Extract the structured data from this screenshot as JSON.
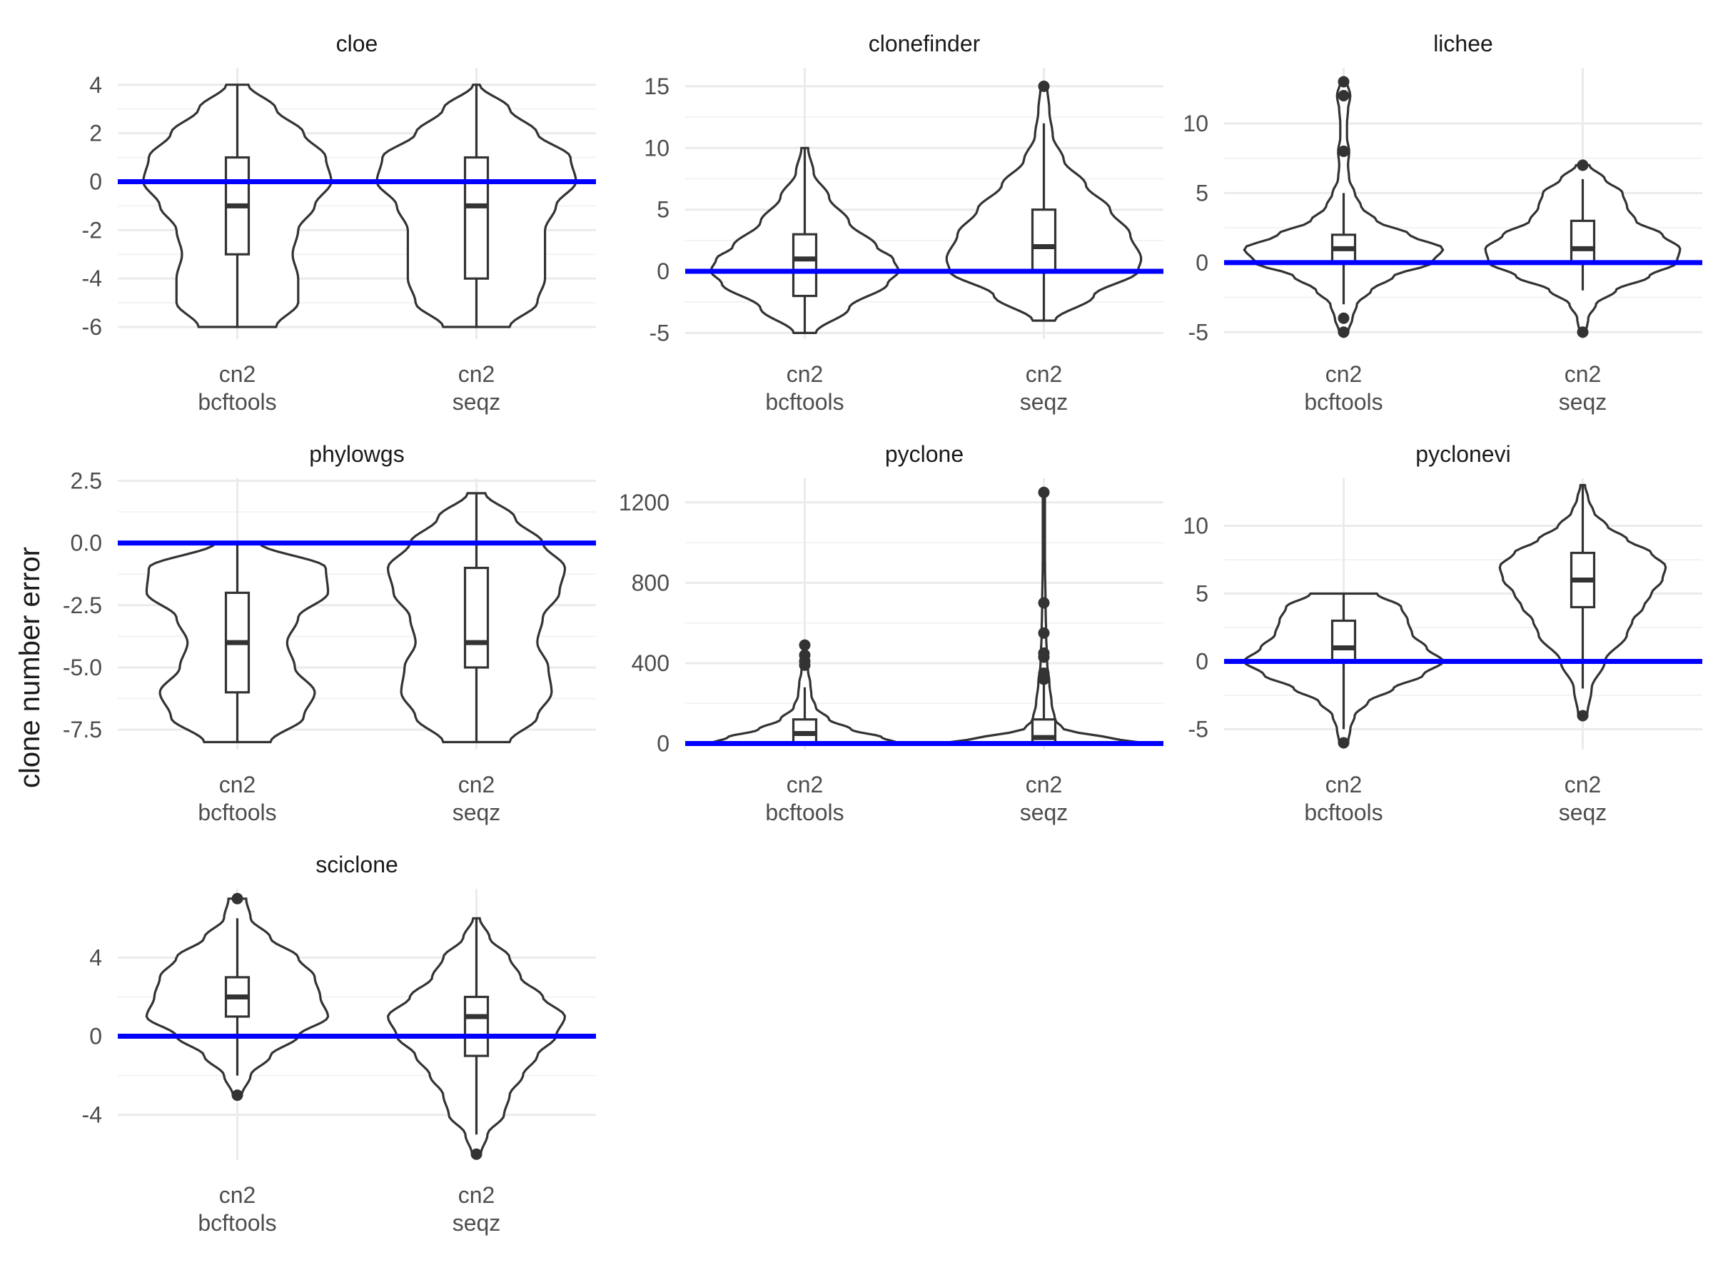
{
  "ylabel": "clone number error",
  "colors": {
    "reference_line": "#0000ff",
    "outline": "#333333",
    "grid_major": "#ebebeb",
    "grid_minor": "#f3f3f3",
    "tick_text": "#4d4d4d",
    "strip_text": "#1a1a1a"
  },
  "chart_data": [
    {
      "type": "violin",
      "title": "cloe",
      "categories": [
        "cn2\nbcftools",
        "cn2\nseqz"
      ],
      "ylim": [
        -6.5,
        4.7
      ],
      "yticks": [
        -6,
        -4,
        -2,
        0,
        2,
        4
      ],
      "ytick_labels": [
        "-6",
        "-4",
        "-2",
        "0",
        "2",
        "4"
      ],
      "reference_line": 0,
      "series": [
        {
          "min": -6,
          "q1": -3,
          "median": -1,
          "q3": 1,
          "max": 4,
          "outliers": [],
          "density": [
            [
              -6,
              0.35
            ],
            [
              -5,
              0.55
            ],
            [
              -4,
              0.55
            ],
            [
              -3,
              0.5
            ],
            [
              -2,
              0.55
            ],
            [
              -1,
              0.7
            ],
            [
              0,
              0.85
            ],
            [
              1,
              0.8
            ],
            [
              2,
              0.6
            ],
            [
              3,
              0.35
            ],
            [
              4,
              0.1
            ]
          ]
        },
        {
          "min": -6,
          "q1": -4,
          "median": -1,
          "q3": 1,
          "max": 4,
          "outliers": [],
          "density": [
            [
              -6,
              0.3
            ],
            [
              -5,
              0.55
            ],
            [
              -4,
              0.62
            ],
            [
              -3,
              0.62
            ],
            [
              -2,
              0.62
            ],
            [
              -1,
              0.72
            ],
            [
              0,
              0.9
            ],
            [
              1,
              0.85
            ],
            [
              2,
              0.55
            ],
            [
              3,
              0.3
            ],
            [
              4,
              0.03
            ]
          ]
        }
      ]
    },
    {
      "type": "violin",
      "title": "clonefinder",
      "categories": [
        "cn2\nbcftools",
        "cn2\nseqz"
      ],
      "ylim": [
        -5.5,
        16.5
      ],
      "yticks": [
        -5,
        0,
        5,
        10,
        15
      ],
      "ytick_labels": [
        "-5",
        "0",
        "5",
        "10",
        "15"
      ],
      "reference_line": 0,
      "series": [
        {
          "min": -5,
          "q1": -2,
          "median": 1,
          "q3": 3,
          "max": 10,
          "outliers": [],
          "density": [
            [
              -5,
              0.1
            ],
            [
              -3,
              0.4
            ],
            [
              -1,
              0.75
            ],
            [
              0,
              0.85
            ],
            [
              1,
              0.8
            ],
            [
              2,
              0.65
            ],
            [
              4,
              0.4
            ],
            [
              6,
              0.22
            ],
            [
              8,
              0.08
            ],
            [
              10,
              0.03
            ]
          ]
        },
        {
          "min": -4,
          "q1": 0,
          "median": 2,
          "q3": 5,
          "max": 12,
          "outliers": [
            15
          ],
          "density": [
            [
              -4,
              0.1
            ],
            [
              -2,
              0.45
            ],
            [
              0,
              0.85
            ],
            [
              1,
              0.88
            ],
            [
              3,
              0.78
            ],
            [
              5,
              0.6
            ],
            [
              7,
              0.38
            ],
            [
              9,
              0.18
            ],
            [
              11,
              0.08
            ],
            [
              13,
              0.05
            ],
            [
              15,
              0.03
            ]
          ]
        }
      ]
    },
    {
      "type": "violin",
      "title": "lichee",
      "categories": [
        "cn2\nbcftools",
        "cn2\nseqz"
      ],
      "ylim": [
        -5.5,
        14
      ],
      "yticks": [
        -5,
        0,
        5,
        10
      ],
      "ytick_labels": [
        "-5",
        "0",
        "5",
        "10"
      ],
      "reference_line": 0,
      "series": [
        {
          "min": -3,
          "q1": 0,
          "median": 1,
          "q3": 2,
          "max": 5,
          "outliers": [
            -5,
            -4,
            8,
            12,
            13
          ],
          "density": [
            [
              -5,
              0.04
            ],
            [
              -4,
              0.08
            ],
            [
              -3,
              0.12
            ],
            [
              -2,
              0.25
            ],
            [
              -1,
              0.45
            ],
            [
              0,
              0.8
            ],
            [
              1,
              0.9
            ],
            [
              2,
              0.6
            ],
            [
              3,
              0.3
            ],
            [
              4,
              0.16
            ],
            [
              5,
              0.1
            ],
            [
              6,
              0.05
            ],
            [
              7,
              0.04
            ],
            [
              8,
              0.05
            ],
            [
              9,
              0.03
            ],
            [
              10,
              0.03
            ],
            [
              11,
              0.04
            ],
            [
              12,
              0.06
            ],
            [
              13,
              0.03
            ]
          ]
        },
        {
          "min": -2,
          "q1": 0,
          "median": 1,
          "q3": 3,
          "max": 6,
          "outliers": [
            -5,
            7
          ],
          "density": [
            [
              -5,
              0.03
            ],
            [
              -4,
              0.05
            ],
            [
              -3,
              0.12
            ],
            [
              -2,
              0.3
            ],
            [
              -1,
              0.6
            ],
            [
              0,
              0.85
            ],
            [
              1,
              0.88
            ],
            [
              2,
              0.72
            ],
            [
              3,
              0.48
            ],
            [
              4,
              0.4
            ],
            [
              5,
              0.36
            ],
            [
              6,
              0.2
            ],
            [
              7,
              0.06
            ]
          ]
        }
      ]
    },
    {
      "type": "violin",
      "title": "phylowgs",
      "categories": [
        "cn2\nbcftools",
        "cn2\nseqz"
      ],
      "ylim": [
        -8.3,
        2.6
      ],
      "yticks": [
        -7.5,
        -5,
        -2.5,
        0,
        2.5
      ],
      "ytick_labels": [
        "-7.5",
        "-5.0",
        "-2.5",
        "0.0",
        "2.5"
      ],
      "reference_line": 0,
      "series": [
        {
          "min": -8,
          "q1": -6,
          "median": -4,
          "q3": -2,
          "max": 0,
          "outliers": [],
          "density": [
            [
              -8,
              0.3
            ],
            [
              -7,
              0.6
            ],
            [
              -6,
              0.7
            ],
            [
              -5,
              0.52
            ],
            [
              -4,
              0.45
            ],
            [
              -3,
              0.55
            ],
            [
              -2,
              0.82
            ],
            [
              -1,
              0.8
            ],
            [
              0,
              0.2
            ]
          ]
        },
        {
          "min": -8,
          "q1": -5,
          "median": -4,
          "q3": -1,
          "max": 2,
          "outliers": [],
          "density": [
            [
              -8,
              0.3
            ],
            [
              -7,
              0.55
            ],
            [
              -6,
              0.68
            ],
            [
              -5,
              0.65
            ],
            [
              -4,
              0.55
            ],
            [
              -3,
              0.6
            ],
            [
              -2,
              0.75
            ],
            [
              -1,
              0.8
            ],
            [
              0,
              0.6
            ],
            [
              1,
              0.35
            ],
            [
              2,
              0.08
            ]
          ]
        }
      ]
    },
    {
      "type": "violin",
      "title": "pyclone",
      "categories": [
        "cn2\nbcftools",
        "cn2\nseqz"
      ],
      "ylim": [
        -30,
        1320
      ],
      "yticks": [
        0,
        400,
        800,
        1200
      ],
      "ytick_labels": [
        "0",
        "400",
        "800",
        "1200"
      ],
      "reference_line": 0,
      "series": [
        {
          "min": 0,
          "q1": 0,
          "median": 50,
          "q3": 120,
          "max": 280,
          "outliers": [
            390,
            410,
            440,
            490
          ],
          "density": [
            [
              0,
              0.85
            ],
            [
              30,
              0.7
            ],
            [
              70,
              0.42
            ],
            [
              120,
              0.22
            ],
            [
              180,
              0.1
            ],
            [
              240,
              0.06
            ],
            [
              300,
              0.05
            ],
            [
              360,
              0.03
            ],
            [
              420,
              0.02
            ],
            [
              490,
              0.01
            ]
          ]
        },
        {
          "min": 0,
          "q1": 0,
          "median": 30,
          "q3": 120,
          "max": 300,
          "outliers": [
            320,
            350,
            430,
            450,
            550,
            700,
            1250
          ],
          "density": [
            [
              0,
              0.95
            ],
            [
              30,
              0.55
            ],
            [
              70,
              0.18
            ],
            [
              120,
              0.1
            ],
            [
              200,
              0.07
            ],
            [
              300,
              0.05
            ],
            [
              400,
              0.03
            ],
            [
              550,
              0.02
            ],
            [
              700,
              0.015
            ],
            [
              900,
              0.01
            ],
            [
              1250,
              0.01
            ]
          ]
        }
      ]
    },
    {
      "type": "violin",
      "title": "pyclonevi",
      "categories": [
        "cn2\nbcftools",
        "cn2\nseqz"
      ],
      "ylim": [
        -6.5,
        13.5
      ],
      "yticks": [
        -5,
        0,
        5,
        10
      ],
      "ytick_labels": [
        "-5",
        "0",
        "5",
        "10"
      ],
      "reference_line": 0,
      "series": [
        {
          "min": -5,
          "q1": 0,
          "median": 1,
          "q3": 3,
          "max": 5,
          "outliers": [
            -6
          ],
          "density": [
            [
              -6,
              0.04
            ],
            [
              -5,
              0.06
            ],
            [
              -4,
              0.1
            ],
            [
              -3,
              0.22
            ],
            [
              -2,
              0.45
            ],
            [
              -1,
              0.72
            ],
            [
              0,
              0.9
            ],
            [
              1,
              0.75
            ],
            [
              2,
              0.62
            ],
            [
              3,
              0.58
            ],
            [
              4,
              0.52
            ],
            [
              5,
              0.3
            ]
          ]
        },
        {
          "min": -2,
          "q1": 4,
          "median": 6,
          "q3": 8,
          "max": 13,
          "outliers": [
            -4
          ],
          "density": [
            [
              -4,
              0.04
            ],
            [
              -2,
              0.08
            ],
            [
              0,
              0.2
            ],
            [
              2,
              0.4
            ],
            [
              3,
              0.45
            ],
            [
              4,
              0.55
            ],
            [
              5,
              0.62
            ],
            [
              6,
              0.72
            ],
            [
              7,
              0.75
            ],
            [
              8,
              0.62
            ],
            [
              9,
              0.4
            ],
            [
              10,
              0.22
            ],
            [
              11,
              0.1
            ],
            [
              12,
              0.05
            ],
            [
              13,
              0.02
            ]
          ]
        }
      ]
    },
    {
      "type": "violin",
      "title": "sciclone",
      "categories": [
        "cn2\nbcftools",
        "cn2\nseqz"
      ],
      "ylim": [
        -6.3,
        7.5
      ],
      "yticks": [
        -4,
        0,
        4
      ],
      "ytick_labels": [
        "-4",
        "0",
        "4"
      ],
      "reference_line": 0,
      "series": [
        {
          "min": -2,
          "q1": 1,
          "median": 2,
          "q3": 3,
          "max": 6,
          "outliers": [
            -3,
            7
          ],
          "density": [
            [
              -3,
              0.04
            ],
            [
              -2,
              0.12
            ],
            [
              -1,
              0.3
            ],
            [
              0,
              0.55
            ],
            [
              1,
              0.82
            ],
            [
              2,
              0.75
            ],
            [
              3,
              0.7
            ],
            [
              4,
              0.55
            ],
            [
              5,
              0.3
            ],
            [
              6,
              0.12
            ],
            [
              7,
              0.08
            ]
          ]
        },
        {
          "min": -5,
          "q1": -1,
          "median": 1,
          "q3": 2,
          "max": 6,
          "outliers": [
            -6
          ],
          "density": [
            [
              -6,
              0.04
            ],
            [
              -5,
              0.1
            ],
            [
              -4,
              0.25
            ],
            [
              -3,
              0.3
            ],
            [
              -2,
              0.42
            ],
            [
              -1,
              0.55
            ],
            [
              0,
              0.72
            ],
            [
              1,
              0.8
            ],
            [
              2,
              0.6
            ],
            [
              3,
              0.4
            ],
            [
              4,
              0.3
            ],
            [
              5,
              0.12
            ],
            [
              6,
              0.03
            ]
          ]
        }
      ]
    }
  ]
}
